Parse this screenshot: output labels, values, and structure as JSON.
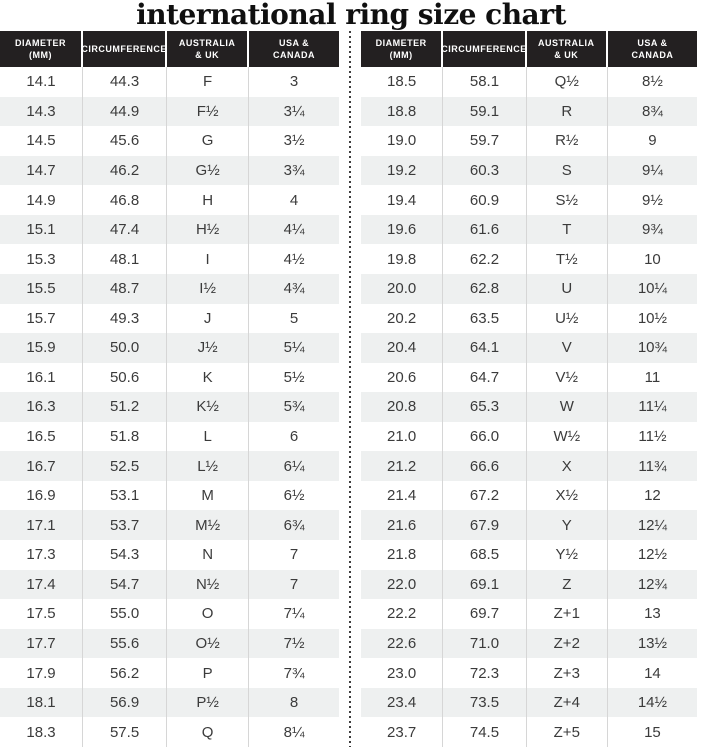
{
  "title": "international ring size chart",
  "colors": {
    "header_bg": "#232021",
    "header_text": "#ffffff",
    "row_alt_bg": "#eef0f0",
    "body_text": "#3b3b3b",
    "column_divider": "#d6d6d6",
    "dotted_divider": "#3c3c3c",
    "title_color": "#101010"
  },
  "chart_data": [
    {
      "type": "table",
      "name": "ring-sizes-left",
      "columns": [
        [
          "DIAMETER",
          "(mm)"
        ],
        [
          "CIRCUMFERENCE"
        ],
        [
          "AUSTRALIA",
          "& UK"
        ],
        [
          "USA &",
          "CANADA"
        ]
      ],
      "rows": [
        [
          "14.1",
          "44.3",
          "F",
          "3"
        ],
        [
          "14.3",
          "44.9",
          "F½",
          "3¼"
        ],
        [
          "14.5",
          "45.6",
          "G",
          "3½"
        ],
        [
          "14.7",
          "46.2",
          "G½",
          "3¾"
        ],
        [
          "14.9",
          "46.8",
          "H",
          "4"
        ],
        [
          "15.1",
          "47.4",
          "H½",
          "4¼"
        ],
        [
          "15.3",
          "48.1",
          "I",
          "4½"
        ],
        [
          "15.5",
          "48.7",
          "I½",
          "4¾"
        ],
        [
          "15.7",
          "49.3",
          "J",
          "5"
        ],
        [
          "15.9",
          "50.0",
          "J½",
          "5¼"
        ],
        [
          "16.1",
          "50.6",
          "K",
          "5½"
        ],
        [
          "16.3",
          "51.2",
          "K½",
          "5¾"
        ],
        [
          "16.5",
          "51.8",
          "L",
          "6"
        ],
        [
          "16.7",
          "52.5",
          "L½",
          "6¼"
        ],
        [
          "16.9",
          "53.1",
          "M",
          "6½"
        ],
        [
          "17.1",
          "53.7",
          "M½",
          "6¾"
        ],
        [
          "17.3",
          "54.3",
          "N",
          "7"
        ],
        [
          "17.4",
          "54.7",
          "N½",
          "7"
        ],
        [
          "17.5",
          "55.0",
          "O",
          "7¼"
        ],
        [
          "17.7",
          "55.6",
          "O½",
          "7½"
        ],
        [
          "17.9",
          "56.2",
          "P",
          "7¾"
        ],
        [
          "18.1",
          "56.9",
          "P½",
          "8"
        ],
        [
          "18.3",
          "57.5",
          "Q",
          "8¼"
        ]
      ]
    },
    {
      "type": "table",
      "name": "ring-sizes-right",
      "columns": [
        [
          "DIAMETER",
          "(mm)"
        ],
        [
          "CIRCUMFERENCE"
        ],
        [
          "AUSTRALIA",
          "& UK"
        ],
        [
          "USA &",
          "CANADA"
        ]
      ],
      "rows": [
        [
          "18.5",
          "58.1",
          "Q½",
          "8½"
        ],
        [
          "18.8",
          "59.1",
          "R",
          "8¾"
        ],
        [
          "19.0",
          "59.7",
          "R½",
          "9"
        ],
        [
          "19.2",
          "60.3",
          "S",
          "9¼"
        ],
        [
          "19.4",
          "60.9",
          "S½",
          "9½"
        ],
        [
          "19.6",
          "61.6",
          "T",
          "9¾"
        ],
        [
          "19.8",
          "62.2",
          "T½",
          "10"
        ],
        [
          "20.0",
          "62.8",
          "U",
          "10¼"
        ],
        [
          "20.2",
          "63.5",
          "U½",
          "10½"
        ],
        [
          "20.4",
          "64.1",
          "V",
          "10¾"
        ],
        [
          "20.6",
          "64.7",
          "V½",
          "11"
        ],
        [
          "20.8",
          "65.3",
          "W",
          "11¼"
        ],
        [
          "21.0",
          "66.0",
          "W½",
          "11½"
        ],
        [
          "21.2",
          "66.6",
          "X",
          "11¾"
        ],
        [
          "21.4",
          "67.2",
          "X½",
          "12"
        ],
        [
          "21.6",
          "67.9",
          "Y",
          "12¼"
        ],
        [
          "21.8",
          "68.5",
          "Y½",
          "12½"
        ],
        [
          "22.0",
          "69.1",
          "Z",
          "12¾"
        ],
        [
          "22.2",
          "69.7",
          "Z+1",
          "13"
        ],
        [
          "22.6",
          "71.0",
          "Z+2",
          "13½"
        ],
        [
          "23.0",
          "72.3",
          "Z+3",
          "14"
        ],
        [
          "23.4",
          "73.5",
          "Z+4",
          "14½"
        ],
        [
          "23.7",
          "74.5",
          "Z+5",
          "15"
        ]
      ]
    }
  ]
}
